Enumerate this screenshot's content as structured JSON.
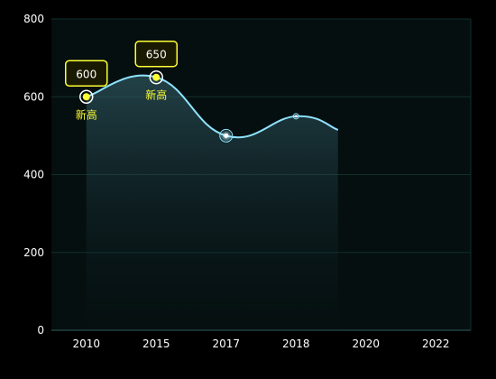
{
  "chart_data": {
    "type": "line",
    "categories": [
      "2010",
      "2015",
      "2017",
      "2018",
      "2020",
      "2022"
    ],
    "y_ticks": [
      "0",
      "200",
      "400",
      "600",
      "800"
    ],
    "ylim": [
      0,
      800
    ],
    "series": [
      {
        "values": [
          600,
          650,
          500,
          550,
          515,
          null
        ]
      }
    ],
    "annotations": [
      {
        "category": "2010",
        "value": 600,
        "box_label": "600",
        "note": "新高"
      },
      {
        "category": "2015",
        "value": 650,
        "box_label": "650",
        "note": "新高"
      }
    ],
    "colors": {
      "line": "#8fe3ff",
      "highlight": "#ffff33",
      "plot_bg": "#050f10",
      "grid": "#10302c"
    }
  }
}
